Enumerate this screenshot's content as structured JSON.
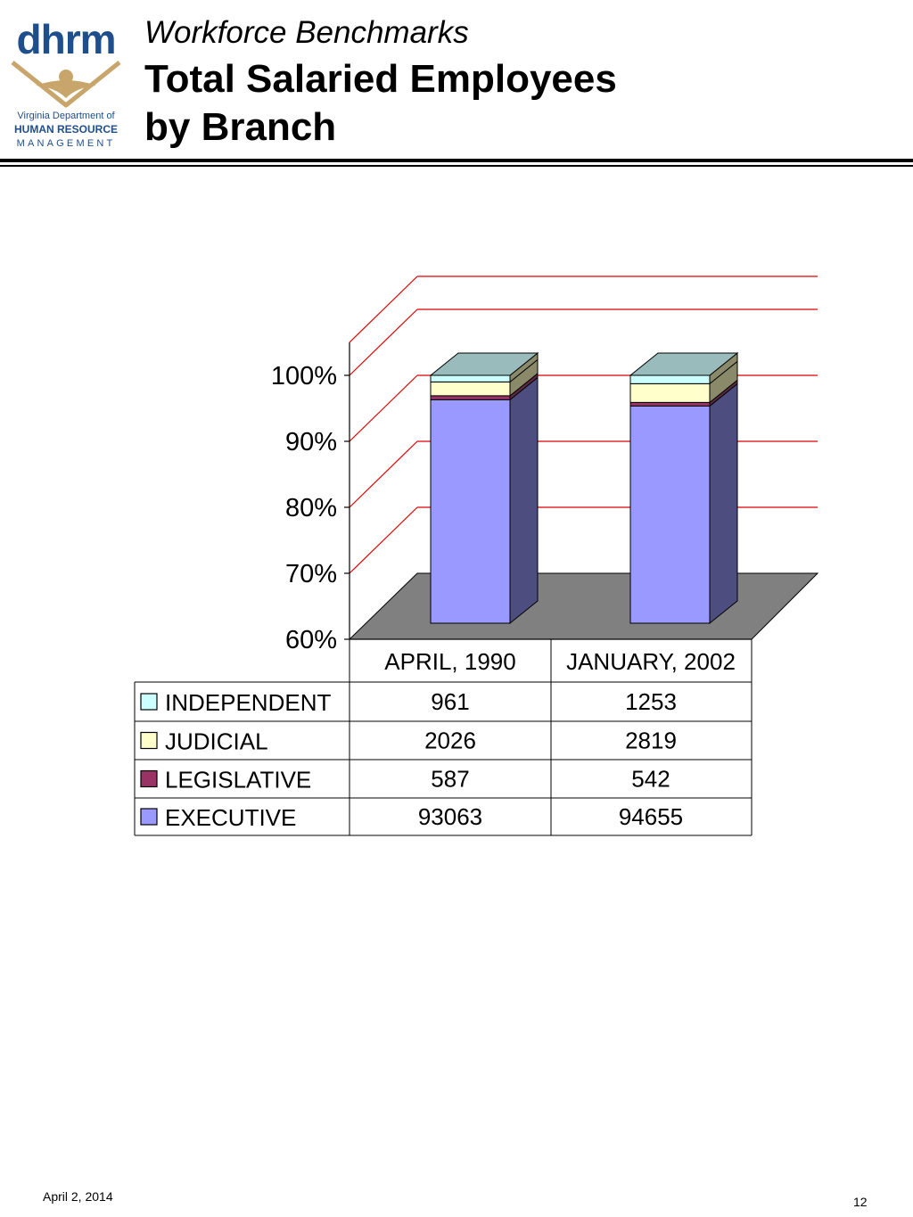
{
  "logo": {
    "wordmark": "dhrm",
    "line1": "Virginia Department of",
    "line2": "HUMAN RESOURCE",
    "line3": "MANAGEMENT"
  },
  "header": {
    "subtitle": "Workforce Benchmarks",
    "title_line1": "Total Salaried Employees",
    "title_line2": "by Branch"
  },
  "colors": {
    "executive": "#9999ff",
    "executive_side": "#4d4d80",
    "legislative": "#993366",
    "judicial": "#ffffcc",
    "independent": "#ccffff",
    "bar_top": "#99bbbb",
    "gridline": "#dd0000",
    "floor": "#808080"
  },
  "chart_data": {
    "type": "bar",
    "stacked": "percent",
    "categories": [
      "APRIL, 1990",
      "JANUARY, 2002"
    ],
    "series": [
      {
        "name": "INDEPENDENT",
        "values": [
          961,
          1253
        ],
        "color": "#ccffff"
      },
      {
        "name": "JUDICIAL",
        "values": [
          2026,
          2819
        ],
        "color": "#ffffcc"
      },
      {
        "name": "LEGISLATIVE",
        "values": [
          587,
          542
        ],
        "color": "#993366"
      },
      {
        "name": "EXECUTIVE",
        "values": [
          93063,
          94655
        ],
        "color": "#9999ff"
      }
    ],
    "ylim": [
      60,
      100
    ],
    "yticks": [
      "60%",
      "70%",
      "80%",
      "90%",
      "100%"
    ],
    "grid": true,
    "legend": "data table below chart"
  },
  "footer": {
    "date": "April 2, 2014",
    "page": "12"
  }
}
